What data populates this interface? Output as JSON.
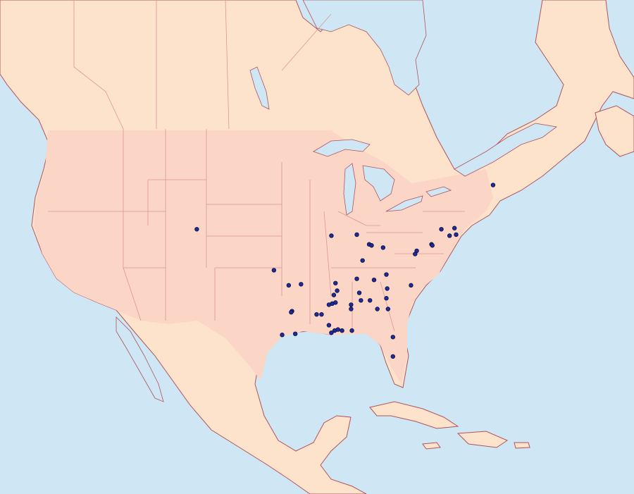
{
  "points": [
    {
      "lon": -70.0,
      "lat": 43.8
    },
    {
      "lon": -106.1,
      "lat": 39.7
    },
    {
      "lon": -96.7,
      "lat": 35.9
    },
    {
      "lon": -94.9,
      "lat": 34.5
    },
    {
      "lon": -93.4,
      "lat": 34.6
    },
    {
      "lon": -94.5,
      "lat": 32.1
    },
    {
      "lon": -94.6,
      "lat": 32.0
    },
    {
      "lon": -91.5,
      "lat": 31.8
    },
    {
      "lon": -90.9,
      "lat": 31.8
    },
    {
      "lon": -95.7,
      "lat": 29.9
    },
    {
      "lon": -94.1,
      "lat": 30.0
    },
    {
      "lon": -90.0,
      "lat": 30.8
    },
    {
      "lon": -89.7,
      "lat": 30.1
    },
    {
      "lon": -89.3,
      "lat": 30.3
    },
    {
      "lon": -88.9,
      "lat": 30.4
    },
    {
      "lon": -88.4,
      "lat": 30.3
    },
    {
      "lon": -87.2,
      "lat": 30.3
    },
    {
      "lon": -89.7,
      "lat": 39.1
    },
    {
      "lon": -86.6,
      "lat": 39.2
    },
    {
      "lon": -85.1,
      "lat": 38.3
    },
    {
      "lon": -84.8,
      "lat": 38.2
    },
    {
      "lon": -83.4,
      "lat": 38.0
    },
    {
      "lon": -85.9,
      "lat": 36.8
    },
    {
      "lon": -89.2,
      "lat": 34.7
    },
    {
      "lon": -89.0,
      "lat": 34.0
    },
    {
      "lon": -89.4,
      "lat": 33.6
    },
    {
      "lon": -89.6,
      "lat": 32.8
    },
    {
      "lon": -89.2,
      "lat": 32.9
    },
    {
      "lon": -90.0,
      "lat": 32.7
    },
    {
      "lon": -87.3,
      "lat": 32.7
    },
    {
      "lon": -87.3,
      "lat": 32.3
    },
    {
      "lon": -86.6,
      "lat": 35.1
    },
    {
      "lon": -86.3,
      "lat": 33.8
    },
    {
      "lon": -86.1,
      "lat": 33.1
    },
    {
      "lon": -85.0,
      "lat": 33.1
    },
    {
      "lon": -84.5,
      "lat": 35.0
    },
    {
      "lon": -83.0,
      "lat": 35.5
    },
    {
      "lon": -82.9,
      "lat": 34.2
    },
    {
      "lon": -83.0,
      "lat": 33.3
    },
    {
      "lon": -84.1,
      "lat": 32.3
    },
    {
      "lon": -82.8,
      "lat": 32.3
    },
    {
      "lon": -80.0,
      "lat": 34.5
    },
    {
      "lon": -82.2,
      "lat": 29.7
    },
    {
      "lon": -82.2,
      "lat": 27.9
    },
    {
      "lon": -79.5,
      "lat": 37.4
    },
    {
      "lon": -79.3,
      "lat": 37.7
    },
    {
      "lon": -77.5,
      "lat": 38.3
    },
    {
      "lon": -77.4,
      "lat": 38.2
    },
    {
      "lon": -76.3,
      "lat": 39.7
    },
    {
      "lon": -75.3,
      "lat": 39.1
    },
    {
      "lon": -74.7,
      "lat": 39.8
    },
    {
      "lon": -74.5,
      "lat": 39.2
    }
  ]
}
